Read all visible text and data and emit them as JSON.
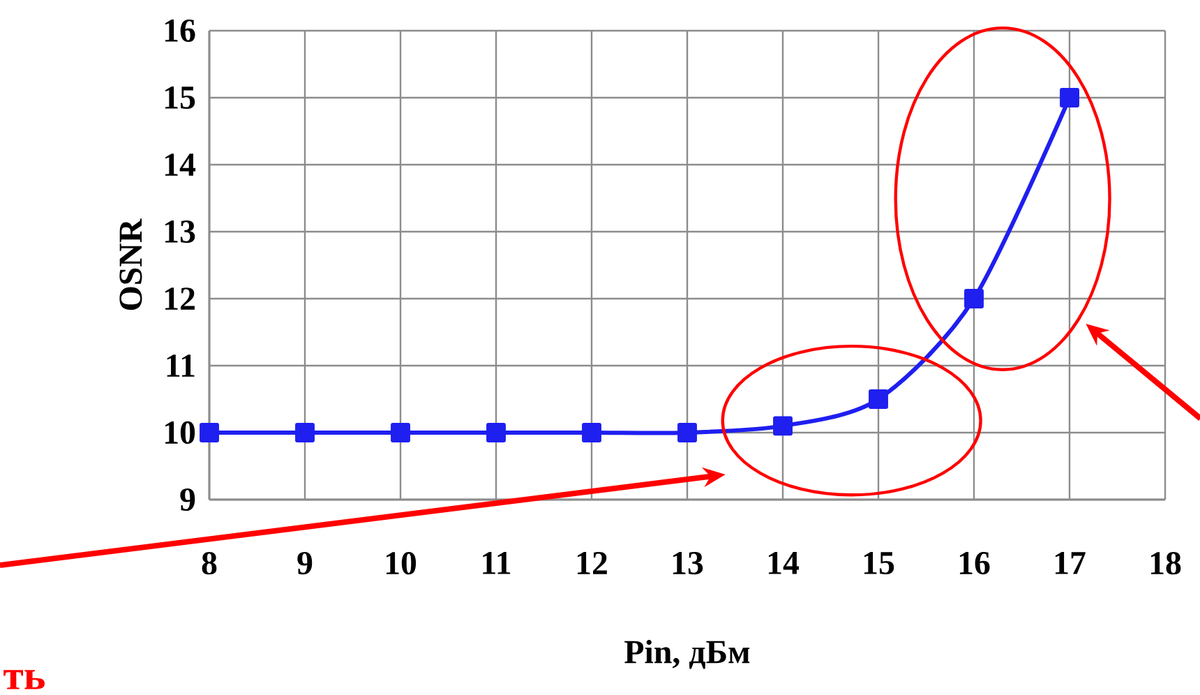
{
  "chart_data": {
    "type": "line",
    "x": [
      8,
      9,
      10,
      11,
      12,
      13,
      14,
      15,
      16,
      17
    ],
    "series": [
      {
        "color": "#1f1ff0",
        "values": [
          10,
          10,
          10,
          10,
          10,
          10,
          10.1,
          10.5,
          12,
          15
        ]
      }
    ],
    "xlabel": "Pin, дБм",
    "ylabel": "OSNR",
    "xlim": [
      8,
      18
    ],
    "ylim": [
      9,
      16
    ],
    "xticks": [
      8,
      9,
      10,
      11,
      12,
      13,
      14,
      15,
      16,
      17,
      18
    ],
    "yticks": [
      9,
      10,
      11,
      12,
      13,
      14,
      15,
      16
    ],
    "grid": true,
    "marker": "square",
    "line_style": "solid",
    "annotations": [
      "ть"
    ]
  }
}
